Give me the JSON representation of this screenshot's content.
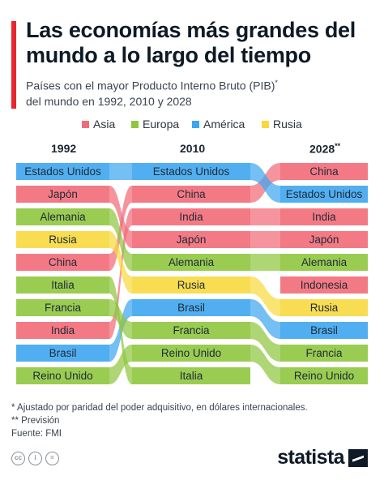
{
  "header": {
    "title": "Las economías más grandes del mundo a lo largo del tiempo",
    "subtitle_a": "Países con el mayor Producto Interno Bruto (PIB)",
    "subtitle_mark": "*",
    "subtitle_b": "del mundo en 1992, 2010 y 2028"
  },
  "legend": [
    {
      "label": "Asia",
      "color": "#f26b78"
    },
    {
      "label": "Europa",
      "color": "#8fc63f"
    },
    {
      "label": "América",
      "color": "#3ea6f0"
    },
    {
      "label": "Rusia",
      "color": "#f7d93f"
    }
  ],
  "years": {
    "y1992": "1992",
    "y2010": "2010",
    "y2028": "2028",
    "y2028_mark": "**"
  },
  "chart_data": {
    "type": "table",
    "metric": "Rango por PIB",
    "columns": [
      "1992",
      "2010",
      "2028**"
    ],
    "rankings": {
      "1992": [
        "Estados Unidos",
        "Japón",
        "Alemania",
        "Rusia",
        "China",
        "Italia",
        "Francia",
        "India",
        "Brasil",
        "Reino Unido"
      ],
      "2010": [
        "Estados Unidos",
        "China",
        "India",
        "Japón",
        "Alemania",
        "Rusia",
        "Brasil",
        "Francia",
        "Reino Unido",
        "Italia"
      ],
      "2028": [
        "China",
        "Estados Unidos",
        "India",
        "Japón",
        "Alemania",
        "Indonesia",
        "Rusia",
        "Brasil",
        "Francia",
        "Reino Unido"
      ]
    },
    "countries": [
      {
        "name": "Estados Unidos",
        "group": "América",
        "ranks": [
          1,
          1,
          2
        ]
      },
      {
        "name": "Japón",
        "group": "Asia",
        "ranks": [
          2,
          4,
          4
        ]
      },
      {
        "name": "Alemania",
        "group": "Europa",
        "ranks": [
          3,
          5,
          5
        ]
      },
      {
        "name": "Rusia",
        "group": "Rusia",
        "ranks": [
          4,
          6,
          7
        ]
      },
      {
        "name": "China",
        "group": "Asia",
        "ranks": [
          5,
          2,
          1
        ]
      },
      {
        "name": "Italia",
        "group": "Europa",
        "ranks": [
          6,
          10,
          null
        ]
      },
      {
        "name": "Francia",
        "group": "Europa",
        "ranks": [
          7,
          8,
          9
        ]
      },
      {
        "name": "India",
        "group": "Asia",
        "ranks": [
          8,
          3,
          3
        ]
      },
      {
        "name": "Brasil",
        "group": "América",
        "ranks": [
          9,
          7,
          8
        ]
      },
      {
        "name": "Reino Unido",
        "group": "Europa",
        "ranks": [
          10,
          9,
          10
        ]
      },
      {
        "name": "Indonesia",
        "group": "Asia",
        "ranks": [
          null,
          null,
          6
        ]
      }
    ]
  },
  "footnotes": {
    "note1": "*   Ajustado por paridad del poder adquisitivo, en dólares internacionales.",
    "note2": "** Previsión",
    "source": "Fuente: FMI"
  },
  "brand": {
    "name": "statista"
  },
  "license_icons": [
    "cc-icon",
    "attribution-icon",
    "no-derivatives-icon"
  ]
}
